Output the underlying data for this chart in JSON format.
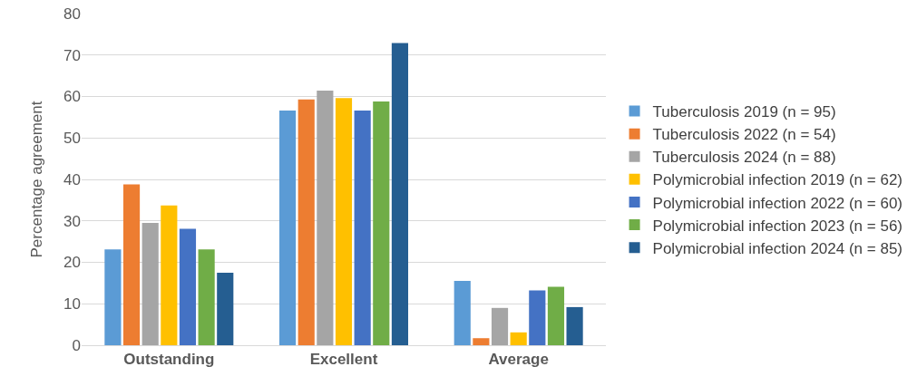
{
  "chart_data": {
    "type": "bar",
    "ylabel": "Percentage agreement",
    "categories": [
      "Outstanding",
      "Excellent",
      "Average"
    ],
    "series": [
      {
        "name": "Tuberculosis 2019 (n = 95)",
        "color": "#5b9bd5",
        "values": [
          23.1,
          56.6,
          15.5
        ]
      },
      {
        "name": "Tuberculosis 2022 (n = 54)",
        "color": "#ed7d31",
        "values": [
          38.8,
          59.3,
          1.7
        ]
      },
      {
        "name": "Tuberculosis 2024 (n = 88)",
        "color": "#a5a5a5",
        "values": [
          29.5,
          61.4,
          9.0
        ]
      },
      {
        "name": "Polymicrobial infection 2019 (n = 62)",
        "color": "#ffc000",
        "values": [
          33.7,
          59.6,
          3.1
        ]
      },
      {
        "name": "Polymicrobial infection 2022 (n = 60)",
        "color": "#4472c4",
        "values": [
          28.1,
          56.6,
          13.2
        ]
      },
      {
        "name": "Polymicrobial infection 2023 (n = 56)",
        "color": "#70ad47",
        "values": [
          23.1,
          58.8,
          14.1
        ]
      },
      {
        "name": "Polymicrobial infection 2024 (n = 85)",
        "color": "#255e91",
        "values": [
          17.5,
          72.9,
          9.2
        ]
      }
    ],
    "ylim": [
      0,
      80
    ],
    "yticks": [
      0,
      10,
      20,
      30,
      40,
      50,
      60,
      70,
      80
    ],
    "grid": "y",
    "legend": "right"
  }
}
